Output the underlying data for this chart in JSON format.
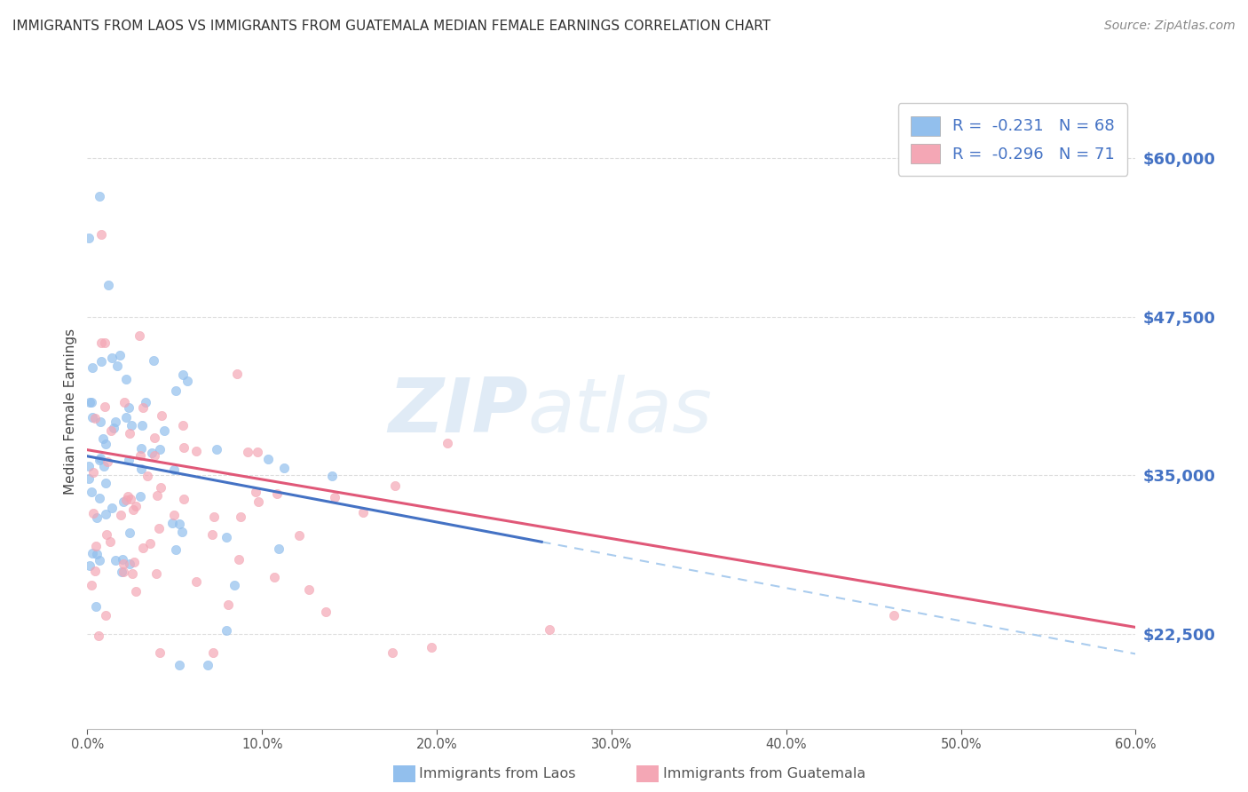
{
  "title": "IMMIGRANTS FROM LAOS VS IMMIGRANTS FROM GUATEMALA MEDIAN FEMALE EARNINGS CORRELATION CHART",
  "source": "Source: ZipAtlas.com",
  "legend_bottom": [
    "Immigrants from Laos",
    "Immigrants from Guatemala"
  ],
  "ylabel": "Median Female Earnings",
  "x_min": 0.0,
  "x_max": 0.6,
  "y_min": 15000,
  "y_max": 65000,
  "y_ticks": [
    22500,
    35000,
    47500,
    60000
  ],
  "y_tick_labels": [
    "$22,500",
    "$35,000",
    "$47,500",
    "$60,000"
  ],
  "x_ticks": [
    0.0,
    0.1,
    0.2,
    0.3,
    0.4,
    0.5,
    0.6
  ],
  "x_tick_labels": [
    "0.0%",
    "10.0%",
    "20.0%",
    "30.0%",
    "40.0%",
    "50.0%",
    "60.0%"
  ],
  "color_laos": "#92BFED",
  "color_guatemala": "#F4A7B5",
  "line_color_laos": "#4472C4",
  "line_color_guatemala": "#E05878",
  "dashed_line_color": "#AACCEE",
  "R_laos": -0.231,
  "N_laos": 68,
  "R_guatemala": -0.296,
  "N_guatemala": 71,
  "watermark_zip": "ZIP",
  "watermark_atlas": "atlas",
  "tick_label_color": "#4472C4",
  "title_color": "#333333",
  "source_color": "#888888"
}
